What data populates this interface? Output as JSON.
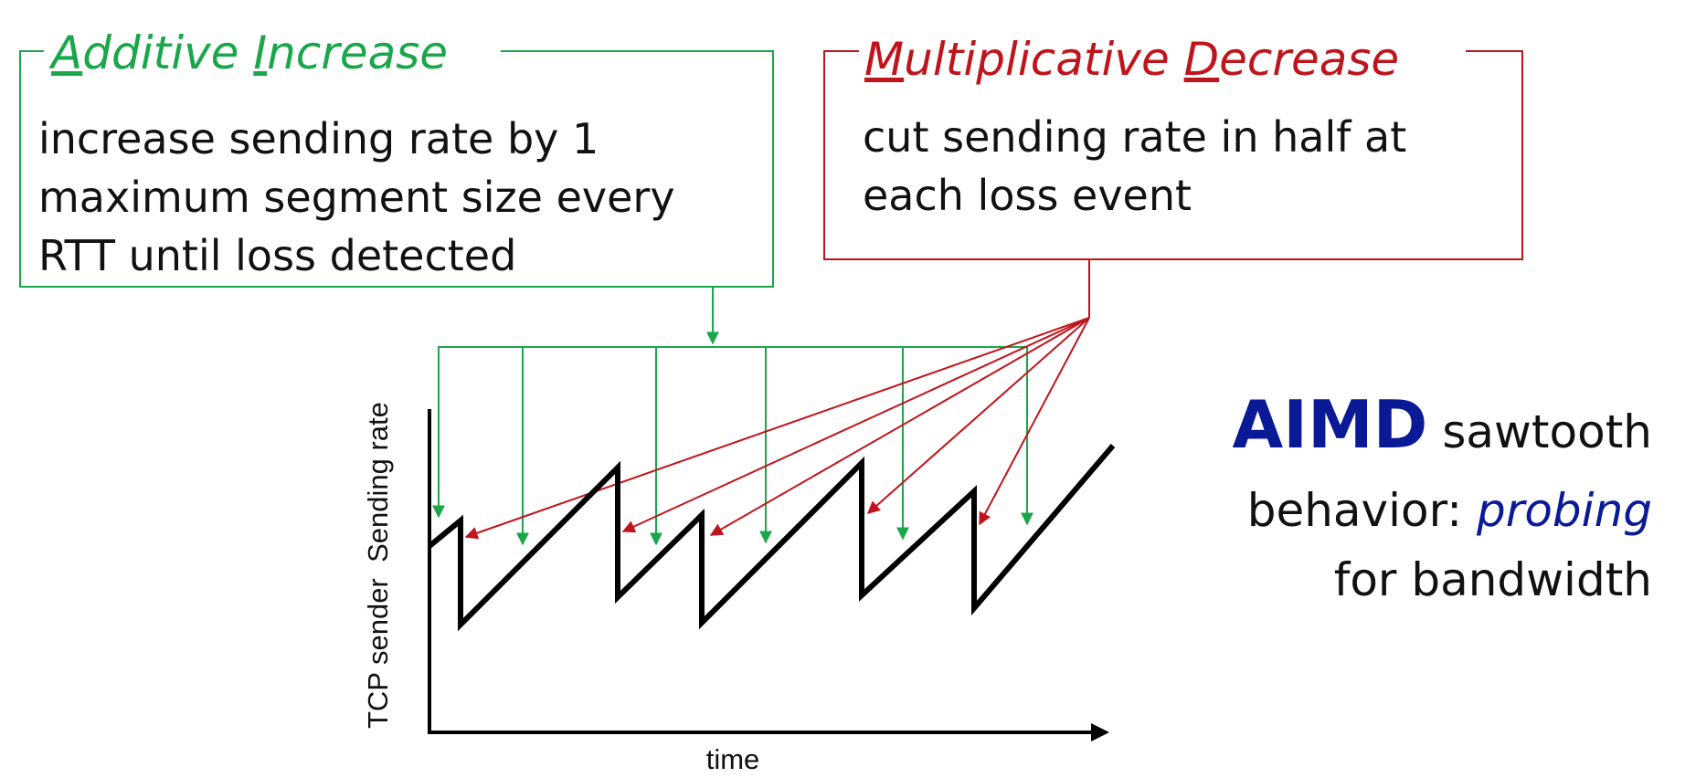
{
  "colors": {
    "additive": "#1aa64a",
    "multiplicative": "#c0141c",
    "aimd": "#0a1a96",
    "curve": "#000000"
  },
  "additive_box": {
    "title_first_letter": "A",
    "title_part1": "dditive ",
    "title_second_letter": "I",
    "title_part2": "ncrease",
    "lines": [
      "increase sending rate by 1",
      "maximum segment size every",
      "RTT until loss detected"
    ]
  },
  "multiplicative_box": {
    "title_first_letter": "M",
    "title_part1": "ultiplicative ",
    "title_second_letter": "D",
    "title_part2": "ecrease",
    "lines": [
      "cut sending rate in half at",
      "each loss event"
    ]
  },
  "graph": {
    "ylabel": "TCP sender  Sending rate",
    "xlabel": "time"
  },
  "aimd_caption": {
    "bold": "AIMD",
    "line1_rest": " sawtooth",
    "line2_start": "behavior: ",
    "line2_italic": "probing",
    "line3": "for bandwidth"
  }
}
